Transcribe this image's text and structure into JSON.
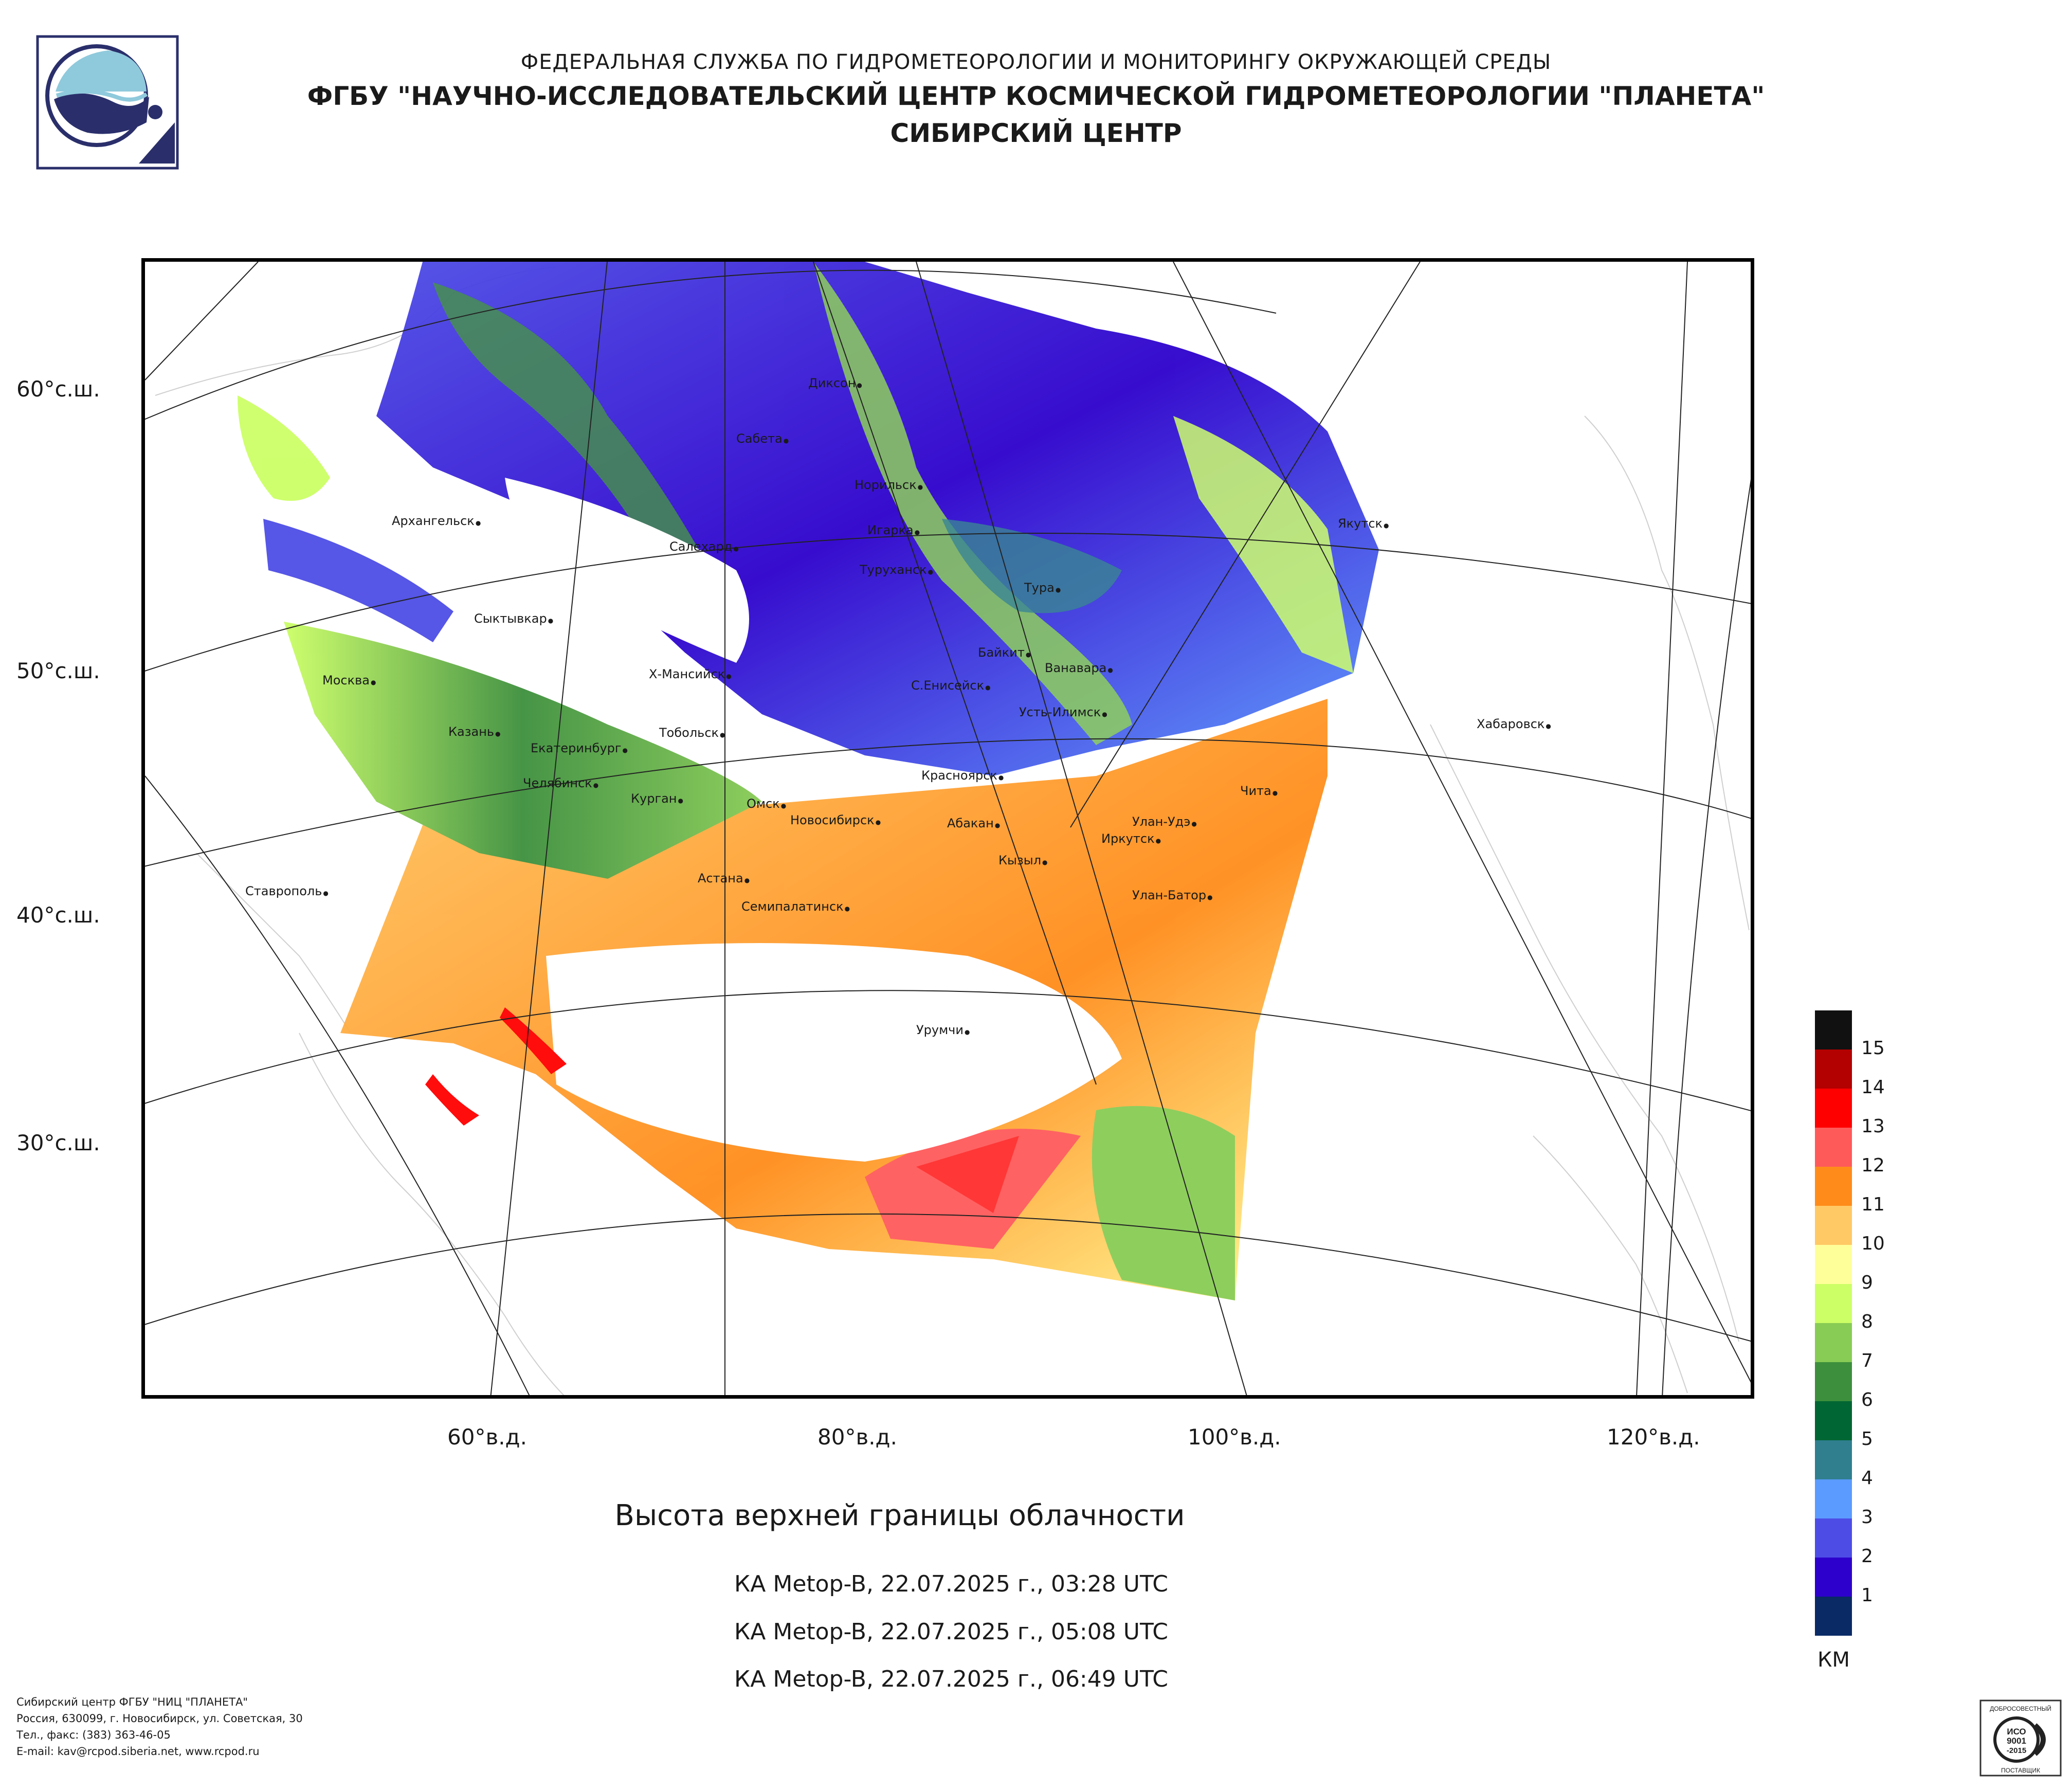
{
  "header": {
    "line1": "ФЕДЕРАЛЬНАЯ СЛУЖБА ПО ГИДРОМЕТЕОРОЛОГИИ И МОНИТОРИНГУ ОКРУЖАЮЩЕЙ СРЕДЫ",
    "line2": "ФГБУ \"НАУЧНО-ИССЛЕДОВАТЕЛЬСКИЙ ЦЕНТР КОСМИЧЕСКОЙ ГИДРОМЕТЕОРОЛОГИИ \"ПЛАНЕТА\"",
    "line3": "СИБИРСКИЙ ЦЕНТР"
  },
  "map": {
    "lat_labels": [
      "60°с.ш.",
      "50°с.ш.",
      "40°с.ш.",
      "30°с.ш."
    ],
    "lon_labels": [
      "60°в.д.",
      "80°в.д.",
      "100°в.д.",
      "120°в.д."
    ],
    "cities": [
      "Диксон",
      "Сабета",
      "Норильск",
      "Архангельск",
      "Салехард",
      "Игарка",
      "Туруханск",
      "Якутск",
      "Тура",
      "Сыктывкар",
      "Байкит",
      "Ванавара",
      "Москва",
      "Х-Мансийск",
      "С.Енисейск",
      "Усть-Илимск",
      "Хабаровск",
      "Казань",
      "Тобольск",
      "Екатеринбург",
      "Челябинск",
      "Курган",
      "Красноярск",
      "Чита",
      "Омск",
      "Новосибирск",
      "Абакан",
      "Улан-Удэ",
      "Иркутск",
      "Кызыл",
      "Астана",
      "Улан-Батор",
      "Ставрополь",
      "Семипалатинск",
      "Урумчи"
    ]
  },
  "title": "Высота верхней границы облачности",
  "passes": [
    "КА Metop-B, 22.07.2025 г., 03:28 UTC",
    "КА Metop-B, 22.07.2025 г., 05:08 UTC",
    "КА Metop-B, 22.07.2025 г., 06:49 UTC"
  ],
  "legend": {
    "unit": "КМ",
    "levels": [
      "15",
      "14",
      "13",
      "12",
      "11",
      "10",
      "9",
      "8",
      "7",
      "6",
      "5",
      "4",
      "3",
      "2",
      "1"
    ],
    "colors": [
      "#111111",
      "#b30000",
      "#ff0000",
      "#ff5a5a",
      "#ff8c1a",
      "#ffc966",
      "#ffff99",
      "#ccff66",
      "#88cc55",
      "#3d8f3d",
      "#006633",
      "#2f7f8f",
      "#5b9bff",
      "#4d4de6",
      "#2d00cc",
      "#0a2a66"
    ]
  },
  "footer": {
    "line1": "Сибирский центр ФГБУ \"НИЦ \"ПЛАНЕТА\"",
    "line2": "Россия, 630099, г. Новосибирск, ул. Советская, 30",
    "line3": "Тел., факс: (383) 363-46-05",
    "line4": "E-mail: kav@rcpod.siberia.net, www.rcpod.ru"
  },
  "certificate": {
    "top": "ДОБРОСОВЕСТНЫЙ",
    "mid1": "ИСО",
    "mid2": "9001",
    "mid3": "-2015",
    "bottom": "ПОСТАВЩИК"
  }
}
